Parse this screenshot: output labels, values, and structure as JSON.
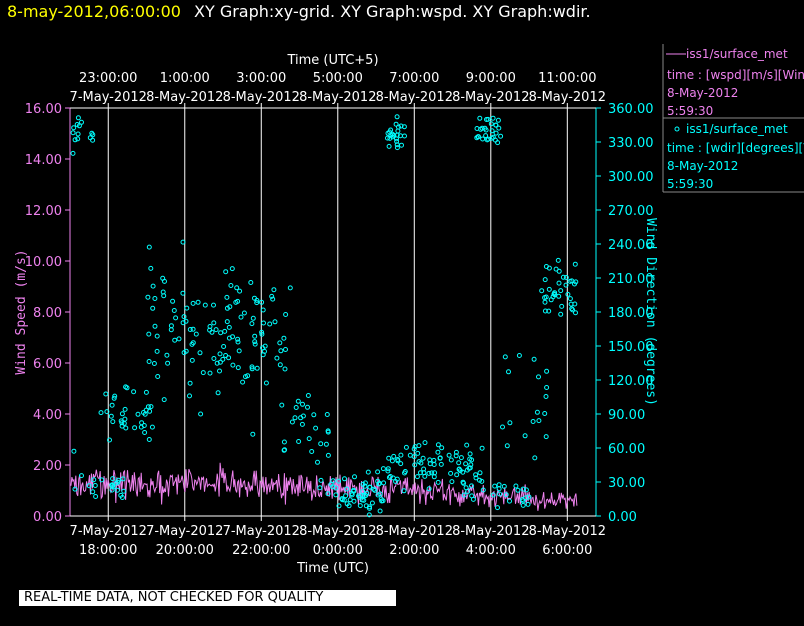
{
  "header": {
    "datetime": "8-may-2012,06:00:00",
    "graphs": "XY Graph:xy-grid.  XY Graph:wspd.  XY Graph:wdir."
  },
  "legend": [
    {
      "name": "iss1/surface_met",
      "marker": "line",
      "field": "time : [wspd][m/s][Wind",
      "date": "8-May-2012",
      "time": "5:59:30"
    },
    {
      "name": "iss1/surface_met",
      "marker": "circle",
      "field": "time : [wdir][degrees][V",
      "date": "8-May-2012",
      "time": "5:59:30"
    }
  ],
  "disclaimer": "REAL-TIME DATA, NOT CHECKED FOR QUALITY",
  "colors": {
    "speed": "#ee82ee",
    "direction": "#00ffff",
    "header": "#ffff00",
    "grid": "#ffffff",
    "background": "#000000"
  },
  "chart_data": {
    "type": "scatter",
    "xlabel_bottom": "Time (UTC)",
    "xlabel_top": "Time (UTC+5)",
    "ylabel_left": "Wind Speed (m/s)",
    "ylabel_right": "Wind Direction (degrees)",
    "xlim_hours_utc": [
      17.0,
      6.75
    ],
    "ylim_left": [
      0,
      16
    ],
    "ylim_right": [
      0,
      360
    ],
    "left_ticks": [
      "0.00",
      "2.00",
      "4.00",
      "6.00",
      "8.00",
      "10.00",
      "12.00",
      "14.00",
      "16.00"
    ],
    "right_ticks": [
      "0.00",
      "30.00",
      "60.00",
      "90.00",
      "120.00",
      "150.00",
      "180.00",
      "210.00",
      "240.00",
      "270.00",
      "300.00",
      "330.00",
      "360.00"
    ],
    "bottom_ticks": [
      {
        "date": "7-May-2012",
        "time": "18:00:00"
      },
      {
        "date": "7-May-2012",
        "time": "20:00:00"
      },
      {
        "date": "7-May-2012",
        "time": "22:00:00"
      },
      {
        "date": "8-May-2012",
        "time": "0:00:00"
      },
      {
        "date": "8-May-2012",
        "time": "2:00:00"
      },
      {
        "date": "8-May-2012",
        "time": "4:00:00"
      },
      {
        "date": "8-May-2012",
        "time": "6:00:00"
      }
    ],
    "top_ticks": [
      {
        "time": "23:00:00",
        "date": "7-May-2012"
      },
      {
        "time": "1:00:00",
        "date": "8-May-2012"
      },
      {
        "time": "3:00:00",
        "date": "8-May-2012"
      },
      {
        "time": "5:00:00",
        "date": "8-May-2012"
      },
      {
        "time": "7:00:00",
        "date": "8-May-2012"
      },
      {
        "time": "9:00:00",
        "date": "8-May-2012"
      },
      {
        "time": "11:00:00",
        "date": "8-May-2012"
      }
    ],
    "series": [
      {
        "name": "wspd",
        "axis": "left",
        "style": "line",
        "t_start": 17.0,
        "t_end": 6.25,
        "segments": [
          {
            "from": 17.0,
            "to": 22.5,
            "mean": 1.3,
            "amplitude": 0.8
          },
          {
            "from": 22.5,
            "to": 24.5,
            "mean": 1.1,
            "amplitude": 0.8
          },
          {
            "from": 24.5,
            "to": 26.8,
            "mean": 1.0,
            "amplitude": 0.7
          },
          {
            "from": 26.8,
            "to": 29.0,
            "mean": 0.8,
            "amplitude": 0.6
          },
          {
            "from": 29.0,
            "to": 30.25,
            "mean": 0.6,
            "amplitude": 0.5
          }
        ]
      },
      {
        "name": "wdir",
        "axis": "right",
        "style": "scatter",
        "clusters": [
          {
            "from": 17.0,
            "to": 17.6,
            "mean": 335,
            "spread": 20,
            "count": 14
          },
          {
            "from": 17.1,
            "to": 18.5,
            "mean": 30,
            "spread": 18,
            "count": 22
          },
          {
            "from": 17.8,
            "to": 19.2,
            "mean": 95,
            "spread": 25,
            "count": 34
          },
          {
            "from": 19.0,
            "to": 22.8,
            "mean": 160,
            "spread": 55,
            "count": 130
          },
          {
            "from": 22.5,
            "to": 23.8,
            "mean": 80,
            "spread": 30,
            "count": 26
          },
          {
            "from": 23.5,
            "to": 25.2,
            "mean": 22,
            "spread": 16,
            "count": 60
          },
          {
            "from": 25.3,
            "to": 27.8,
            "mean": 45,
            "spread": 20,
            "count": 80
          },
          {
            "from": 25.3,
            "to": 25.8,
            "mean": 335,
            "spread": 15,
            "count": 24
          },
          {
            "from": 27.6,
            "to": 28.3,
            "mean": 340,
            "spread": 12,
            "count": 28
          },
          {
            "from": 27.3,
            "to": 29.0,
            "mean": 20,
            "spread": 12,
            "count": 26
          },
          {
            "from": 28.3,
            "to": 29.5,
            "mean": 100,
            "spread": 45,
            "count": 18
          },
          {
            "from": 29.3,
            "to": 30.25,
            "mean": 195,
            "spread": 25,
            "count": 38
          }
        ]
      }
    ]
  }
}
